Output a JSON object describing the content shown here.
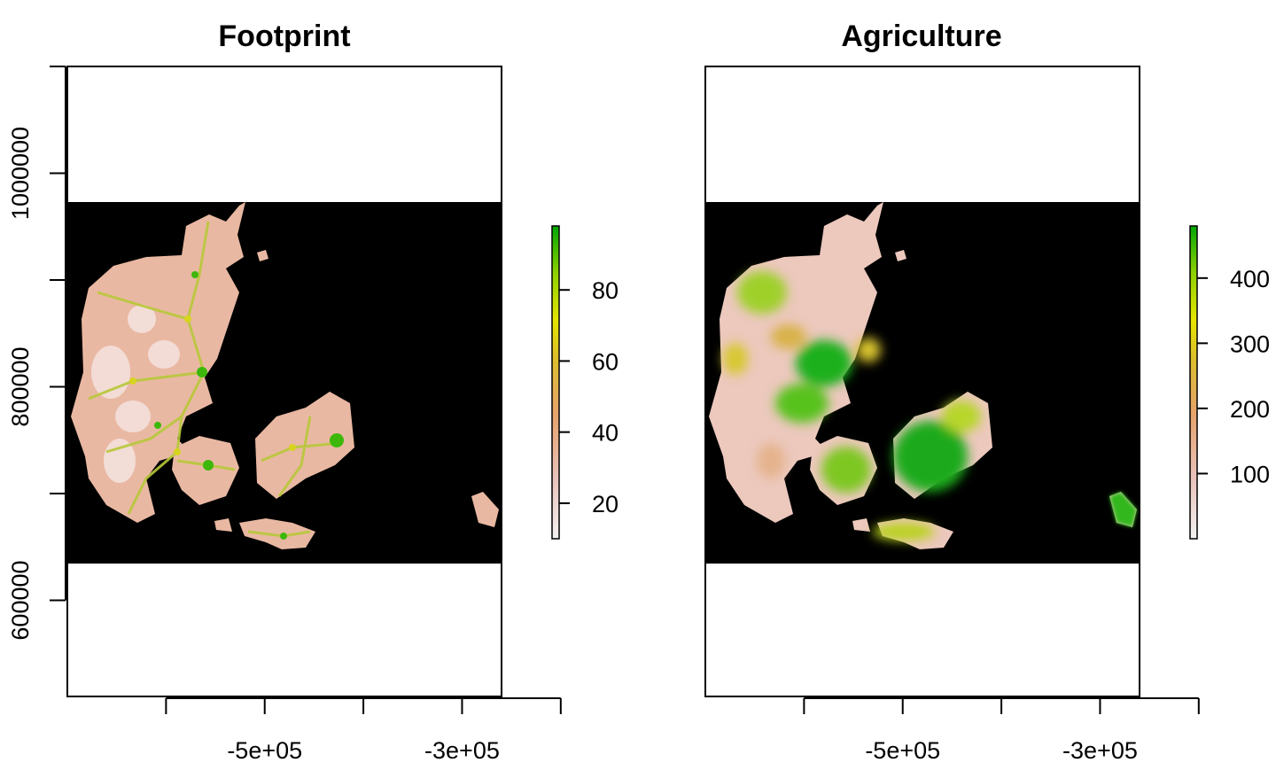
{
  "chart_data": [
    {
      "type": "heatmap",
      "title": "Footprint",
      "xlabel": "",
      "ylabel": "",
      "x_ticks": [
        -600000,
        -500000,
        -400000,
        -300000,
        -200000
      ],
      "x_tick_labels": [
        "",
        "-5e+05",
        "",
        "-3e+05",
        ""
      ],
      "y_ticks": [
        600000,
        700000,
        800000,
        900000,
        1000000,
        1100000
      ],
      "y_tick_labels": [
        "600000",
        "",
        "800000",
        "",
        "1000000",
        ""
      ],
      "xlim": [
        -700000,
        -260000
      ],
      "ylim": [
        510000,
        1100000
      ],
      "raster_extent": {
        "x": [
          -700000,
          -260000
        ],
        "y": [
          645000,
          1010000
        ]
      },
      "background_color": "#000000",
      "grid": false,
      "legend": {
        "placement": "right",
        "range": [
          10,
          98
        ],
        "ticks": [
          20,
          40,
          60,
          80
        ],
        "tick_labels": [
          "20",
          "40",
          "60",
          "80"
        ],
        "colors": [
          "#f2f2f2",
          "#e9c1b8",
          "#e6a36b",
          "#dcbf2b",
          "#e5e500",
          "#8ed100",
          "#00a600"
        ]
      }
    },
    {
      "type": "heatmap",
      "title": "Agriculture",
      "xlabel": "",
      "ylabel": "",
      "x_ticks": [
        -600000,
        -500000,
        -400000,
        -300000,
        -200000
      ],
      "x_tick_labels": [
        "",
        "-5e+05",
        "",
        "-3e+05",
        ""
      ],
      "y_ticks": [],
      "y_tick_labels": [],
      "xlim": [
        -700000,
        -260000
      ],
      "ylim": [
        510000,
        1100000
      ],
      "raster_extent": {
        "x": [
          -700000,
          -260000
        ],
        "y": [
          645000,
          1010000
        ]
      },
      "background_color": "#000000",
      "grid": false,
      "legend": {
        "placement": "right",
        "range": [
          0,
          480
        ],
        "ticks": [
          100,
          200,
          300,
          400
        ],
        "tick_labels": [
          "100",
          "200",
          "300",
          "400"
        ],
        "colors": [
          "#f2f2f2",
          "#e9c1b8",
          "#e6a36b",
          "#dcbf2b",
          "#e5e500",
          "#8ed100",
          "#00a600"
        ]
      }
    }
  ]
}
